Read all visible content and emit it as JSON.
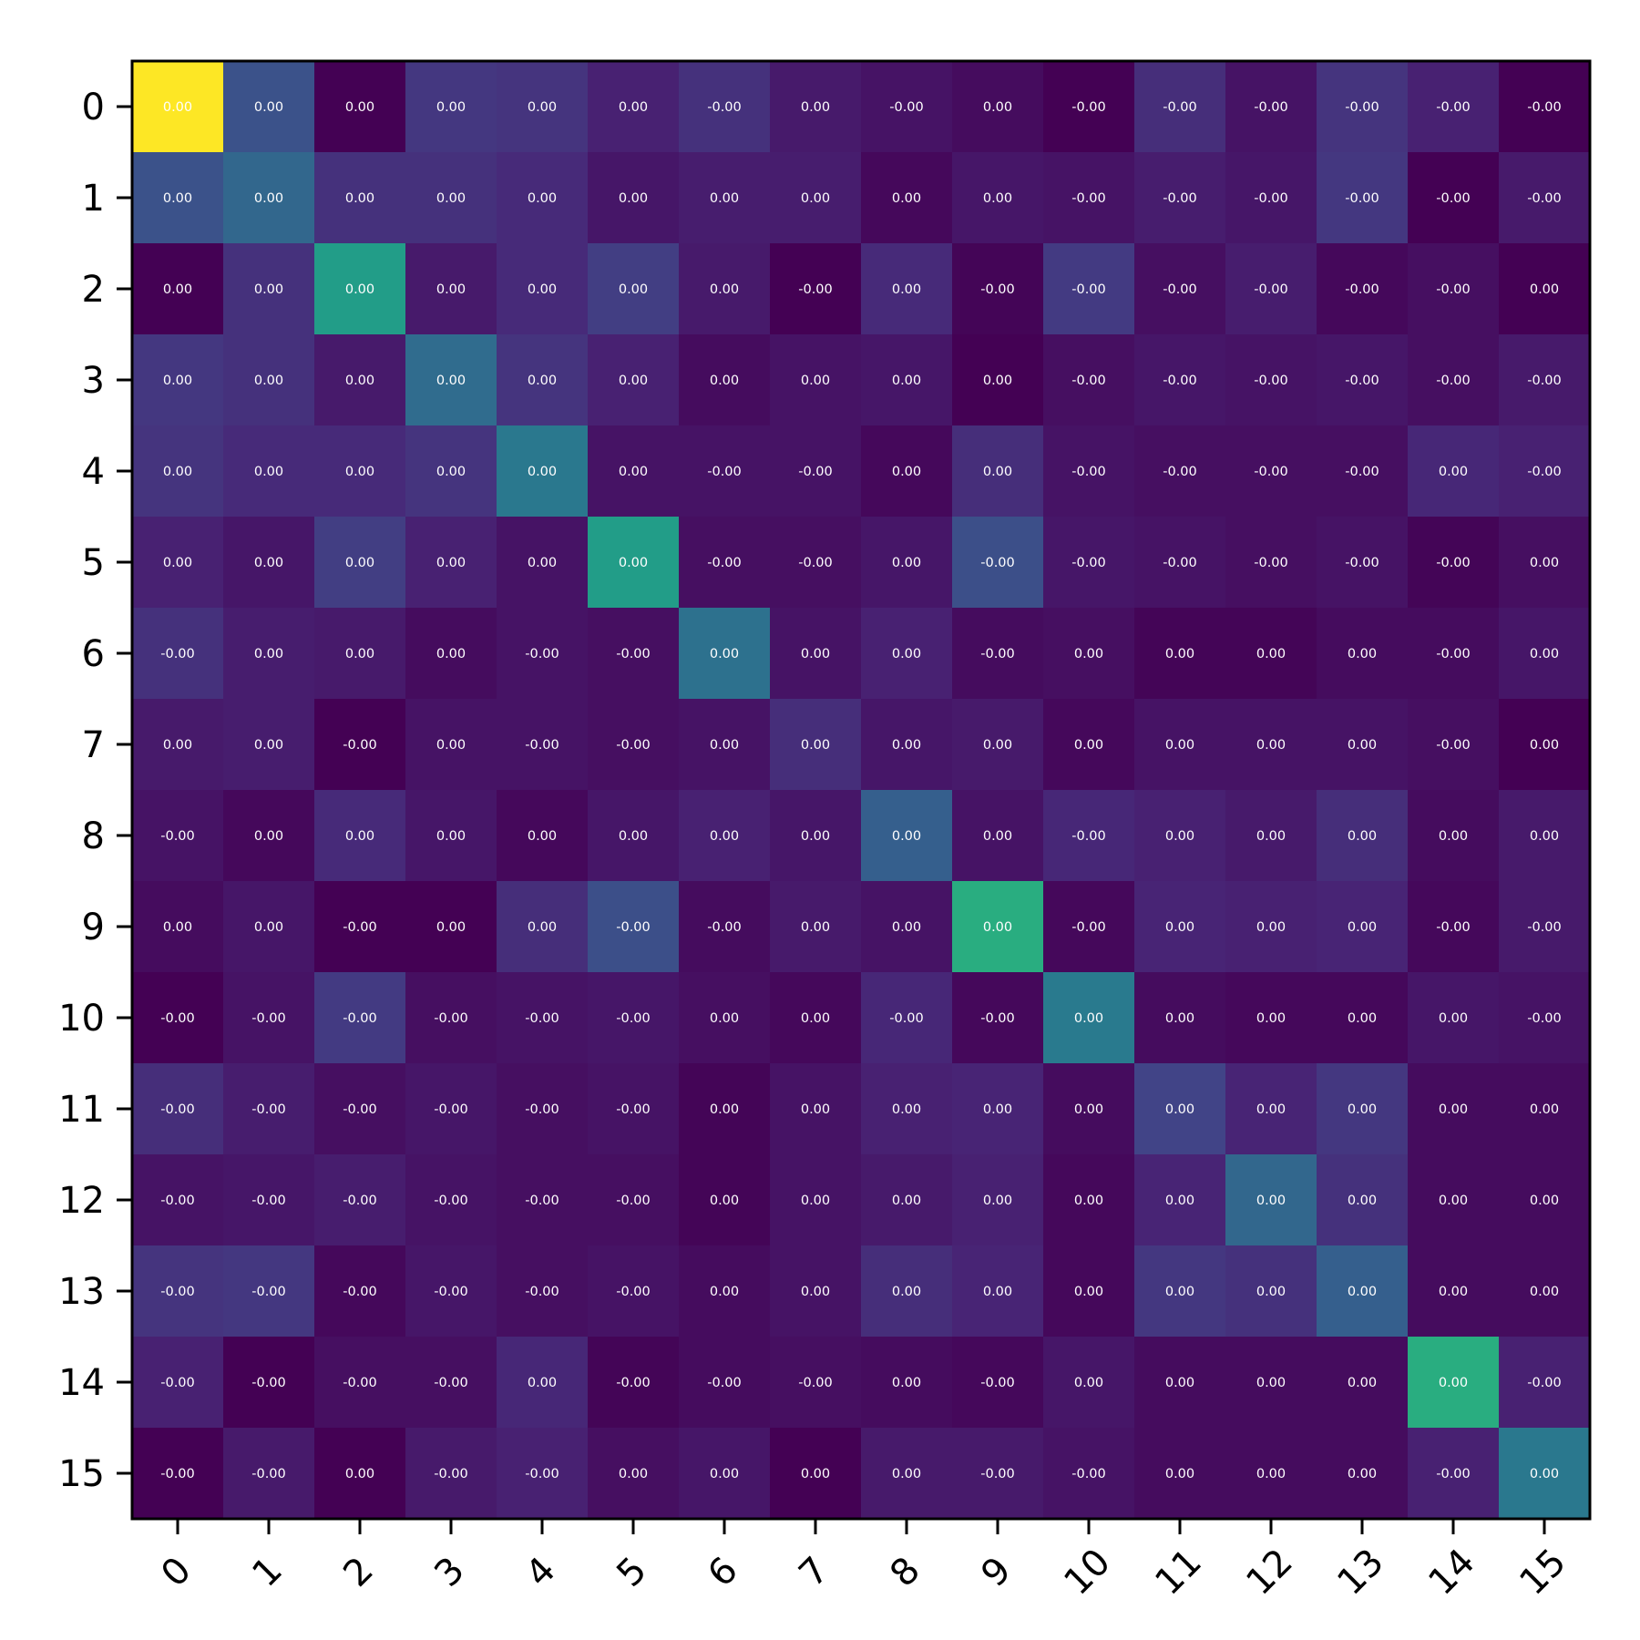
{
  "chart_data": {
    "type": "heatmap",
    "colormap": "viridis",
    "title": "",
    "xlabel": "",
    "ylabel": "",
    "x_tick_labels": [
      "0",
      "1",
      "2",
      "3",
      "4",
      "5",
      "6",
      "7",
      "8",
      "9",
      "10",
      "11",
      "12",
      "13",
      "14",
      "15"
    ],
    "y_tick_labels": [
      "0",
      "1",
      "2",
      "3",
      "4",
      "5",
      "6",
      "7",
      "8",
      "9",
      "10",
      "11",
      "12",
      "13",
      "14",
      "15"
    ],
    "x_tick_rotation_deg": 45,
    "colorbar": false,
    "grid": false,
    "cell_label_color": "#ffffff",
    "values": [
      [
        1.0,
        0.25,
        0.0,
        0.16,
        0.15,
        0.09,
        0.14,
        0.07,
        0.05,
        0.03,
        0.0,
        0.13,
        0.05,
        0.15,
        0.09,
        0.0
      ],
      [
        0.25,
        0.33,
        0.14,
        0.14,
        0.12,
        0.06,
        0.08,
        0.08,
        0.02,
        0.06,
        0.05,
        0.08,
        0.06,
        0.16,
        0.0,
        0.07
      ],
      [
        0.0,
        0.14,
        0.55,
        0.07,
        0.12,
        0.18,
        0.07,
        0.0,
        0.12,
        0.01,
        0.17,
        0.04,
        0.08,
        0.02,
        0.04,
        0.0
      ],
      [
        0.16,
        0.14,
        0.07,
        0.35,
        0.15,
        0.09,
        0.03,
        0.05,
        0.06,
        0.0,
        0.04,
        0.06,
        0.05,
        0.06,
        0.04,
        0.07
      ],
      [
        0.15,
        0.12,
        0.12,
        0.15,
        0.4,
        0.05,
        0.05,
        0.05,
        0.02,
        0.13,
        0.05,
        0.04,
        0.04,
        0.04,
        0.11,
        0.09
      ],
      [
        0.09,
        0.06,
        0.18,
        0.09,
        0.05,
        0.55,
        0.04,
        0.04,
        0.06,
        0.24,
        0.06,
        0.05,
        0.04,
        0.05,
        0.01,
        0.04
      ],
      [
        0.14,
        0.08,
        0.07,
        0.03,
        0.05,
        0.04,
        0.37,
        0.05,
        0.09,
        0.03,
        0.04,
        0.01,
        0.01,
        0.03,
        0.03,
        0.06
      ],
      [
        0.07,
        0.08,
        0.0,
        0.05,
        0.05,
        0.04,
        0.05,
        0.13,
        0.06,
        0.07,
        0.02,
        0.05,
        0.05,
        0.05,
        0.04,
        0.0
      ],
      [
        0.05,
        0.02,
        0.12,
        0.06,
        0.02,
        0.06,
        0.09,
        0.06,
        0.3,
        0.05,
        0.11,
        0.09,
        0.07,
        0.13,
        0.03,
        0.07
      ],
      [
        0.03,
        0.06,
        0.0,
        0.0,
        0.13,
        0.24,
        0.03,
        0.07,
        0.05,
        0.62,
        0.02,
        0.1,
        0.09,
        0.1,
        0.02,
        0.07
      ],
      [
        0.0,
        0.05,
        0.17,
        0.04,
        0.05,
        0.06,
        0.04,
        0.02,
        0.11,
        0.02,
        0.41,
        0.03,
        0.02,
        0.02,
        0.06,
        0.05
      ],
      [
        0.13,
        0.08,
        0.04,
        0.06,
        0.04,
        0.05,
        0.01,
        0.05,
        0.09,
        0.1,
        0.03,
        0.2,
        0.1,
        0.16,
        0.03,
        0.03
      ],
      [
        0.05,
        0.06,
        0.08,
        0.05,
        0.04,
        0.04,
        0.01,
        0.05,
        0.07,
        0.09,
        0.02,
        0.1,
        0.33,
        0.14,
        0.03,
        0.03
      ],
      [
        0.15,
        0.16,
        0.02,
        0.06,
        0.04,
        0.05,
        0.03,
        0.05,
        0.13,
        0.1,
        0.02,
        0.16,
        0.14,
        0.3,
        0.03,
        0.03
      ],
      [
        0.09,
        0.0,
        0.04,
        0.04,
        0.11,
        0.01,
        0.03,
        0.04,
        0.03,
        0.02,
        0.06,
        0.03,
        0.03,
        0.03,
        0.62,
        0.09
      ],
      [
        0.0,
        0.07,
        0.0,
        0.07,
        0.09,
        0.04,
        0.06,
        0.0,
        0.07,
        0.07,
        0.05,
        0.03,
        0.03,
        0.03,
        0.09,
        0.4
      ]
    ],
    "cell_labels": [
      [
        "0.00",
        "0.00",
        "0.00",
        "0.00",
        "0.00",
        "0.00",
        "-0.00",
        "0.00",
        "-0.00",
        "0.00",
        "-0.00",
        "-0.00",
        "-0.00",
        "-0.00",
        "-0.00",
        "-0.00"
      ],
      [
        "0.00",
        "0.00",
        "0.00",
        "0.00",
        "0.00",
        "0.00",
        "0.00",
        "0.00",
        "0.00",
        "0.00",
        "-0.00",
        "-0.00",
        "-0.00",
        "-0.00",
        "-0.00",
        "-0.00"
      ],
      [
        "0.00",
        "0.00",
        "0.00",
        "0.00",
        "0.00",
        "0.00",
        "0.00",
        "-0.00",
        "0.00",
        "-0.00",
        "-0.00",
        "-0.00",
        "-0.00",
        "-0.00",
        "-0.00",
        "0.00"
      ],
      [
        "0.00",
        "0.00",
        "0.00",
        "0.00",
        "0.00",
        "0.00",
        "0.00",
        "0.00",
        "0.00",
        "0.00",
        "-0.00",
        "-0.00",
        "-0.00",
        "-0.00",
        "-0.00",
        "-0.00"
      ],
      [
        "0.00",
        "0.00",
        "0.00",
        "0.00",
        "0.00",
        "0.00",
        "-0.00",
        "-0.00",
        "0.00",
        "0.00",
        "-0.00",
        "-0.00",
        "-0.00",
        "-0.00",
        "0.00",
        "-0.00"
      ],
      [
        "0.00",
        "0.00",
        "0.00",
        "0.00",
        "0.00",
        "0.00",
        "-0.00",
        "-0.00",
        "0.00",
        "-0.00",
        "-0.00",
        "-0.00",
        "-0.00",
        "-0.00",
        "-0.00",
        "0.00"
      ],
      [
        "-0.00",
        "0.00",
        "0.00",
        "0.00",
        "-0.00",
        "-0.00",
        "0.00",
        "0.00",
        "0.00",
        "-0.00",
        "0.00",
        "0.00",
        "0.00",
        "0.00",
        "-0.00",
        "0.00"
      ],
      [
        "0.00",
        "0.00",
        "-0.00",
        "0.00",
        "-0.00",
        "-0.00",
        "0.00",
        "0.00",
        "0.00",
        "0.00",
        "0.00",
        "0.00",
        "0.00",
        "0.00",
        "-0.00",
        "0.00"
      ],
      [
        "-0.00",
        "0.00",
        "0.00",
        "0.00",
        "0.00",
        "0.00",
        "0.00",
        "0.00",
        "0.00",
        "0.00",
        "-0.00",
        "0.00",
        "0.00",
        "0.00",
        "0.00",
        "0.00"
      ],
      [
        "0.00",
        "0.00",
        "-0.00",
        "0.00",
        "0.00",
        "-0.00",
        "-0.00",
        "0.00",
        "0.00",
        "0.00",
        "-0.00",
        "0.00",
        "0.00",
        "0.00",
        "-0.00",
        "-0.00"
      ],
      [
        "-0.00",
        "-0.00",
        "-0.00",
        "-0.00",
        "-0.00",
        "-0.00",
        "0.00",
        "0.00",
        "-0.00",
        "-0.00",
        "0.00",
        "0.00",
        "0.00",
        "0.00",
        "0.00",
        "-0.00"
      ],
      [
        "-0.00",
        "-0.00",
        "-0.00",
        "-0.00",
        "-0.00",
        "-0.00",
        "0.00",
        "0.00",
        "0.00",
        "0.00",
        "0.00",
        "0.00",
        "0.00",
        "0.00",
        "0.00",
        "0.00"
      ],
      [
        "-0.00",
        "-0.00",
        "-0.00",
        "-0.00",
        "-0.00",
        "-0.00",
        "0.00",
        "0.00",
        "0.00",
        "0.00",
        "0.00",
        "0.00",
        "0.00",
        "0.00",
        "0.00",
        "0.00"
      ],
      [
        "-0.00",
        "-0.00",
        "-0.00",
        "-0.00",
        "-0.00",
        "-0.00",
        "0.00",
        "0.00",
        "0.00",
        "0.00",
        "0.00",
        "0.00",
        "0.00",
        "0.00",
        "0.00",
        "0.00"
      ],
      [
        "-0.00",
        "-0.00",
        "-0.00",
        "-0.00",
        "0.00",
        "-0.00",
        "-0.00",
        "-0.00",
        "0.00",
        "-0.00",
        "0.00",
        "0.00",
        "0.00",
        "0.00",
        "0.00",
        "-0.00"
      ],
      [
        "-0.00",
        "-0.00",
        "0.00",
        "-0.00",
        "-0.00",
        "0.00",
        "0.00",
        "0.00",
        "0.00",
        "-0.00",
        "-0.00",
        "0.00",
        "0.00",
        "0.00",
        "-0.00",
        "0.00"
      ]
    ]
  }
}
